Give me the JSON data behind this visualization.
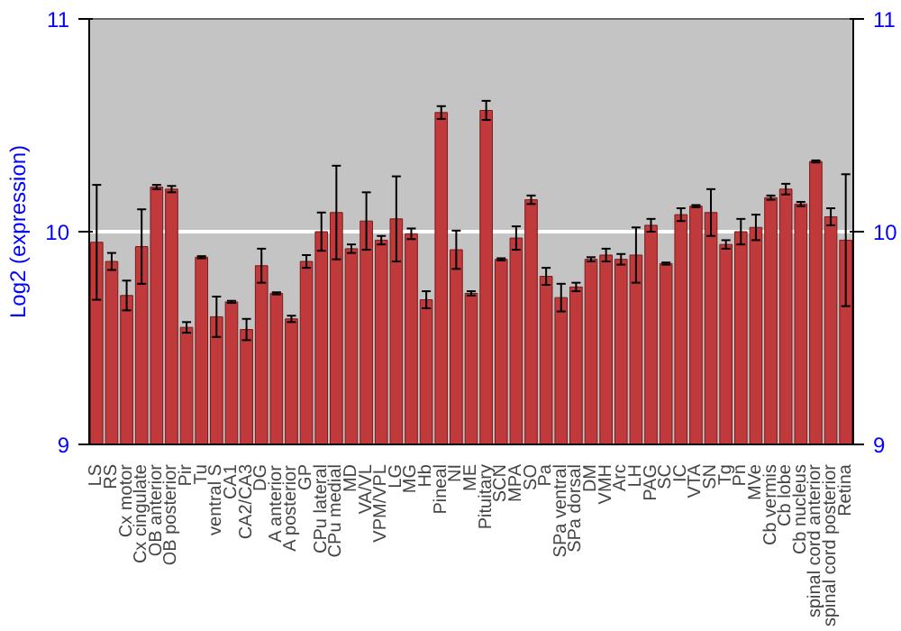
{
  "chart_data": {
    "type": "bar",
    "ylabel": "Log2 (expression)",
    "categories": [
      "LS",
      "RS",
      "Cx motor",
      "Cx cingulate",
      "OB anterior",
      "OB posterior",
      "Pir",
      "Tu",
      "ventral S",
      "CA1",
      "CA2/CA3",
      "DG",
      "A anterior",
      "A posterior",
      "GP",
      "CPu lateral",
      "CPu medial",
      "MD",
      "VA/VL",
      "VPM/VPL",
      "LG",
      "MG",
      "Hb",
      "Pineal",
      "NI",
      "ME",
      "Pituitary",
      "SCN",
      "MPA",
      "SO",
      "Pa",
      "SPa ventral",
      "SPa dorsal",
      "DM",
      "VMH",
      "Arc",
      "LH",
      "PAG",
      "SC",
      "IC",
      "VTA",
      "SN",
      "Tg",
      "Pn",
      "MVe",
      "Cb vermis",
      "Cb lobe",
      "Cb nucleus",
      "spinal cord anterior",
      "spinal cord posterior",
      "Retina"
    ],
    "series": [
      {
        "color": "#c0393b",
        "values": [
          9.95,
          9.86,
          9.7,
          9.93,
          10.21,
          10.2,
          9.55,
          9.88,
          9.6,
          9.67,
          9.54,
          9.84,
          9.71,
          9.59,
          9.86,
          10.0,
          10.09,
          9.92,
          10.05,
          9.96,
          10.06,
          9.99,
          9.68,
          10.56,
          9.915,
          9.71,
          10.57,
          9.87,
          9.97,
          10.15,
          9.79,
          9.69,
          9.74,
          9.87,
          9.89,
          9.87,
          9.89,
          10.03,
          9.85,
          10.08,
          10.12,
          10.09,
          9.94,
          10.0,
          10.02,
          10.16,
          10.2,
          10.13,
          10.33,
          10.07,
          9.96
        ],
        "errors": [
          0.27,
          0.04,
          0.07,
          0.175,
          0.01,
          0.015,
          0.025,
          0.005,
          0.095,
          0.005,
          0.05,
          0.08,
          0.005,
          0.015,
          0.03,
          0.09,
          0.22,
          0.02,
          0.135,
          0.02,
          0.2,
          0.025,
          0.04,
          0.03,
          0.09,
          0.01,
          0.045,
          0.005,
          0.055,
          0.02,
          0.04,
          0.065,
          0.02,
          0.01,
          0.03,
          0.025,
          0.13,
          0.03,
          0.005,
          0.03,
          0.005,
          0.11,
          0.02,
          0.06,
          0.06,
          0.01,
          0.025,
          0.01,
          0.005,
          0.04,
          0.31
        ]
      }
    ],
    "ylim": [
      9,
      11
    ],
    "yticks": [
      9,
      10,
      11
    ],
    "y2lim": [
      9,
      11
    ],
    "y2ticks": [
      9,
      10,
      11
    ],
    "grid": "y"
  }
}
